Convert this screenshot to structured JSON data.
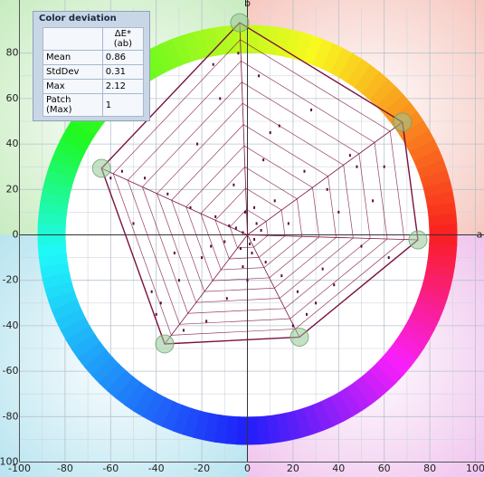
{
  "chart_data": {
    "type": "gamut",
    "x_label": "a",
    "y_label": "b",
    "xlim": [
      -100,
      100
    ],
    "ylim": [
      -100,
      100
    ],
    "xticks": [
      -100,
      -80,
      -60,
      -40,
      -20,
      0,
      20,
      40,
      60,
      80,
      100
    ],
    "yticks": [
      -100,
      -80,
      -60,
      -40,
      -20,
      0,
      20,
      40,
      60,
      80
    ],
    "grid": true,
    "gamut": {
      "x": [
        -3.4,
        68,
        74.8,
        22.8,
        -36.3,
        -64
      ],
      "y": [
        93.4,
        49.6,
        -2.2,
        -45,
        -48,
        29.3
      ],
      "color": "#7a1040"
    },
    "web_levels": [
      0.12,
      0.22,
      0.32,
      0.42,
      0.52,
      0.62,
      0.72,
      0.82,
      0.92
    ],
    "samples": {
      "color": "#5a0a3a",
      "x": [
        -2,
        3,
        -5,
        1,
        4,
        -3,
        6,
        -8,
        2,
        -1,
        8,
        -10,
        12,
        -14,
        15,
        -6,
        18,
        -20,
        22,
        -25,
        25,
        -30,
        30,
        -35,
        35,
        -40,
        40,
        -45,
        50,
        -50,
        55,
        60,
        -55,
        10,
        -12,
        5,
        -4,
        20,
        -18,
        28,
        -22,
        33,
        -28,
        45,
        -38,
        62,
        -60,
        0,
        7,
        -9,
        14,
        -16,
        3,
        -2,
        26,
        -32,
        48,
        -42,
        38,
        -15
      ],
      "y": [
        1,
        -2,
        3,
        -4,
        5,
        -6,
        2,
        4,
        -8,
        10,
        -12,
        -3,
        15,
        8,
        -18,
        22,
        5,
        -10,
        -25,
        12,
        28,
        -20,
        -30,
        18,
        20,
        -35,
        10,
        25,
        -5,
        5,
        15,
        30,
        28,
        45,
        60,
        70,
        80,
        -40,
        -38,
        55,
        40,
        -15,
        -42,
        35,
        -30,
        -10,
        25,
        -20,
        33,
        -28,
        48,
        -5,
        12,
        -14,
        -35,
        -8,
        30,
        -25,
        -22,
        75
      ]
    }
  },
  "deviation_table": {
    "title": "Color deviation",
    "header": [
      "",
      "ΔE*(ab)"
    ],
    "rows": [
      [
        "Mean",
        0.86
      ],
      [
        "StdDev",
        0.31
      ],
      [
        "Max",
        2.12
      ],
      [
        "Patch (Max)",
        1
      ]
    ]
  }
}
